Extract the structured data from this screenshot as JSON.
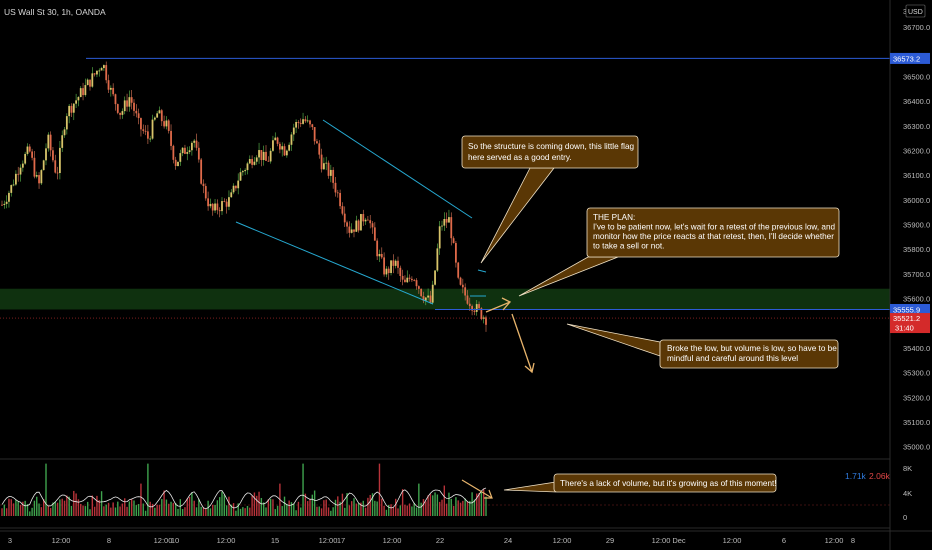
{
  "header": {
    "symbol_title": "US Wall St 30, 1h, OANDA",
    "currency": "USD",
    "corner_price": "3"
  },
  "price_axis": {
    "ticks": [
      "36700.0",
      "36500.0",
      "36400.0",
      "36300.0",
      "36200.0",
      "36100.0",
      "36000.0",
      "35900.0",
      "35800.0",
      "35700.0",
      "35600.0",
      "35400.0",
      "35300.0",
      "35200.0",
      "35100.0",
      "35000.0"
    ],
    "tick_values": [
      36700,
      36500,
      36400,
      36300,
      36200,
      36100,
      36000,
      35900,
      35800,
      35700,
      35600,
      35400,
      35300,
      35200,
      35100,
      35000
    ],
    "tag_high": "36573.2",
    "tag_low_line": "35555.9",
    "tag_last": "35521.2",
    "tag_countdown": "31:40"
  },
  "volume_axis": {
    "ticks": [
      "8K",
      "4K",
      "0"
    ],
    "vol_blue": "1.71k",
    "vol_red": "2.06k"
  },
  "time_axis": {
    "ticks": [
      "3",
      "12:00",
      "8",
      "12:00",
      "10",
      "12:00",
      "15",
      "12:00",
      "17",
      "12:00",
      "22",
      "24",
      "12:00",
      "29",
      "12:00",
      "Dec",
      "12:00",
      "6",
      "12:00",
      "8"
    ]
  },
  "annotations": {
    "structure_note": [
      "So the structure is coming down, this little flag",
      "here served as a good entry."
    ],
    "plan_note": [
      "THE PLAN:",
      "I've to be patient now, let's wait for a retest of the previous low, and",
      "monitor how the price reacts at that retest, then, I'll decide whether",
      "to take a sell or not."
    ],
    "break_note": [
      "Broke the low, but volume is low, so have to be",
      "mindful and careful around this level"
    ],
    "volume_note": [
      "There's a lack of volume, but it's growing as of this moment!"
    ]
  },
  "chart_data": {
    "type": "candlestick",
    "title": "US Wall St 30, 1h, OANDA",
    "ylim": [
      34950,
      36810
    ],
    "high_line": 36573.2,
    "support_line": 35555.9,
    "last_price": 35521.2,
    "support_zone": [
      35555.9,
      35640
    ],
    "price_path": [
      35980,
      36050,
      36150,
      36200,
      36050,
      36250,
      36100,
      36350,
      36400,
      36450,
      36500,
      36560,
      36430,
      36350,
      36420,
      36300,
      36250,
      36350,
      36300,
      36150,
      36200,
      36250,
      36050,
      35950,
      35980,
      36000,
      36100,
      36150,
      36200,
      36150,
      36250,
      36200,
      36300,
      36330,
      36280,
      36150,
      36100,
      36000,
      35880,
      35900,
      35950,
      35800,
      35700,
      35750,
      35650,
      35700,
      35620,
      35580,
      35900,
      35920,
      35650,
      35600,
      35555,
      35521
    ],
    "volume_path": [
      1.5,
      2.1,
      2.8,
      1.2,
      3.1,
      2.2,
      1.8,
      2.5,
      3.0,
      1.6,
      2.4,
      2.9,
      1.7,
      2.2,
      3.2,
      2.0,
      1.4,
      2.6,
      3.0,
      1.9,
      2.3,
      2.8,
      1.5,
      2.1,
      3.1,
      2.0,
      1.6,
      2.7,
      2.9,
      1.8,
      2.2,
      2.6,
      1.4,
      2.5,
      3.3,
      2.1,
      1.7,
      2.4,
      2.8,
      1.6,
      2.3,
      2.9,
      1.5,
      2.0,
      3.2,
      2.2,
      1.8,
      2.6,
      4.2,
      3.0,
      2.2,
      2.5,
      2.9,
      3.4
    ],
    "volume_spikes": [
      9,
      30,
      62,
      78
    ],
    "volume_ylim": [
      0,
      9
    ]
  }
}
